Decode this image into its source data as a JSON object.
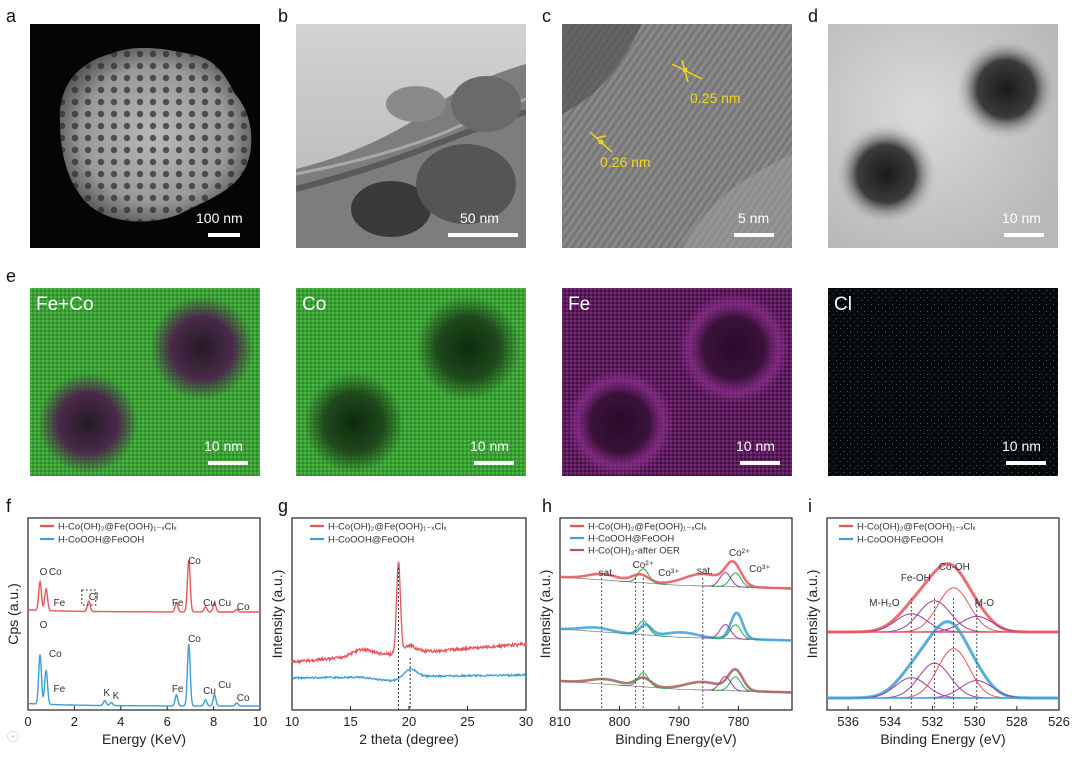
{
  "panels": {
    "a": {
      "letter": "a",
      "scale": "100 nm"
    },
    "b": {
      "letter": "b",
      "scale": "50 nm"
    },
    "c": {
      "letter": "c",
      "scale": "5 nm",
      "lattice": [
        "0.25 nm",
        "0.26 nm"
      ]
    },
    "d": {
      "letter": "d",
      "scale": "10 nm"
    },
    "e": {
      "letter": "e",
      "maps": [
        {
          "label": "Fe+Co",
          "scale": "10 nm"
        },
        {
          "label": "Co",
          "scale": "10 nm"
        },
        {
          "label": "Fe",
          "scale": "10 nm"
        },
        {
          "label": "Cl",
          "scale": "10 nm"
        }
      ]
    },
    "f": {
      "letter": "f"
    },
    "g": {
      "letter": "g"
    },
    "h": {
      "letter": "h"
    },
    "i": {
      "letter": "i"
    }
  },
  "colors": {
    "red": "#e8555a",
    "blue": "#3a9fd6",
    "brown": "#a0605a",
    "green": "#2aa84a",
    "purple": "#9b3c9b",
    "gray": "#8a8a8a",
    "yellow": "#f2d41a"
  },
  "chart_data": [
    {
      "id": "f",
      "type": "line",
      "xlabel": "Energy (KeV)",
      "ylabel": "Cps (a.u.)",
      "xlim": [
        0,
        10
      ],
      "xticks": [
        "0",
        "2",
        "4",
        "6",
        "8",
        "10"
      ],
      "series": [
        {
          "name": "H-Co(OH)₂@Fe(OOH)₁₋ₓClₓ",
          "color": "#e8555a"
        },
        {
          "name": "H-CoOOH@FeOOH",
          "color": "#3a9fd6"
        }
      ],
      "peaks_red": [
        {
          "label": "O",
          "x": 0.52,
          "h": 0.55
        },
        {
          "label": "Co",
          "x": 0.78,
          "h": 0.42
        },
        {
          "label": "Fe",
          "x": 0.71,
          "h": 0.0,
          "tag": "Fe"
        },
        {
          "label": "Cl",
          "x": 2.62,
          "h": 0.2
        },
        {
          "label": "Co",
          "x": 6.93,
          "h": 1.0
        },
        {
          "label": "Fe",
          "x": 6.4,
          "h": 0.18
        },
        {
          "label": "Cu",
          "x": 8.04,
          "h": 0.18
        },
        {
          "label": "Cu",
          "x": 7.65,
          "h": 0.1
        },
        {
          "label": "Co",
          "x": 9.0,
          "h": 0.05
        }
      ],
      "peaks_blue": [
        {
          "label": "O",
          "x": 0.52,
          "h": 0.8
        },
        {
          "label": "Co",
          "x": 0.78,
          "h": 0.55
        },
        {
          "label": "Fe",
          "x": 0.71,
          "h": 0.0
        },
        {
          "label": "K",
          "x": 3.31,
          "h": 0.08
        },
        {
          "label": "K",
          "x": 3.59,
          "h": 0.05
        },
        {
          "label": "Co",
          "x": 6.93,
          "h": 1.0
        },
        {
          "label": "Fe",
          "x": 6.4,
          "h": 0.18
        },
        {
          "label": "Cu",
          "x": 8.04,
          "h": 0.18
        },
        {
          "label": "Cu",
          "x": 7.65,
          "h": 0.1
        },
        {
          "label": "Co",
          "x": 9.0,
          "h": 0.05
        }
      ],
      "annotations_red": [
        "O",
        "Co",
        "Fe",
        "Cl",
        "Fe",
        "Co",
        "Cu",
        "Cu",
        "Co"
      ],
      "annotations_blue": [
        "O",
        "Co",
        "Fe",
        "K",
        "K",
        "Fe",
        "Co",
        "Cu",
        "Cu",
        "Co"
      ]
    },
    {
      "id": "g",
      "type": "line",
      "xlabel": "2 theta (degree)",
      "ylabel": "Intensity (a.u.)",
      "xlim": [
        10,
        30
      ],
      "xticks": [
        "10",
        "15",
        "20",
        "25",
        "30"
      ],
      "series": [
        {
          "name": "H-Co(OH)₂@Fe(OOH)₁₋ₓClₓ",
          "color": "#e8555a"
        },
        {
          "name": "H-CoOOH@FeOOH",
          "color": "#3a9fd6"
        }
      ],
      "red_peak": 19.1,
      "blue_peak": 20.1
    },
    {
      "id": "h",
      "type": "line",
      "xlabel": "Binding Energy(eV)",
      "ylabel": "Intensity (a.u.)",
      "xlim": [
        810,
        771
      ],
      "xticks": [
        "810",
        "800",
        "790",
        "780"
      ],
      "series": [
        {
          "name": "H-Co(OH)₂@Fe(OOH)₁₋ₓClₓ",
          "color": "#e8555a"
        },
        {
          "name": "H-CoOOH@FeOOH",
          "color": "#3a9fd6"
        },
        {
          "name": "H-Co(OH)₂-after OER",
          "color": "#a0605a"
        }
      ],
      "annotations": [
        "sat.",
        "Co²⁺",
        "Co³⁺",
        "sat.",
        "Co²⁺",
        "Co³⁺"
      ],
      "peaks": [
        780.9,
        796.5,
        786.0,
        802.8
      ]
    },
    {
      "id": "i",
      "type": "line",
      "xlabel": "Binding Energy (eV)",
      "ylabel": "Intensity (a.u.)",
      "xlim": [
        537,
        526
      ],
      "xticks": [
        "536",
        "534",
        "532",
        "530",
        "528",
        "526"
      ],
      "series": [
        {
          "name": "H-Co(OH)₂@Fe(OOH)₁₋ₓClₓ",
          "color": "#e8555a"
        },
        {
          "name": "H-CoOOH@FeOOH",
          "color": "#3a9fd6"
        }
      ],
      "annotations": [
        "Co-OH",
        "Fe-OH",
        "M-H₂O",
        "M-O"
      ],
      "components": [
        {
          "label": "M-H₂O",
          "x": 533.0
        },
        {
          "label": "Fe-OH",
          "x": 531.9
        },
        {
          "label": "Co-OH",
          "x": 531.0
        },
        {
          "label": "M-O",
          "x": 529.9
        }
      ]
    }
  ]
}
